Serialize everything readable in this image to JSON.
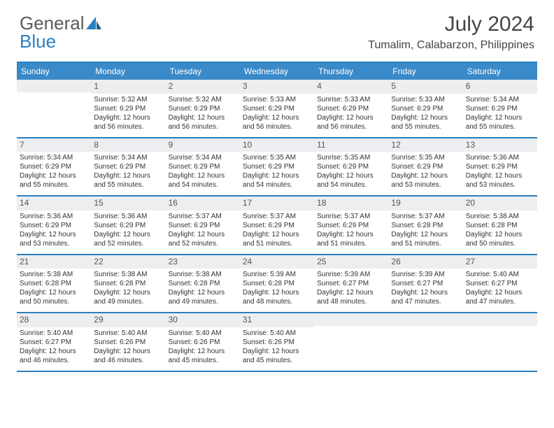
{
  "logo": {
    "text1": "General",
    "text2": "Blue"
  },
  "title": "July 2024",
  "location": "Tumalim, Calabarzon, Philippines",
  "day_names": [
    "Sunday",
    "Monday",
    "Tuesday",
    "Wednesday",
    "Thursday",
    "Friday",
    "Saturday"
  ],
  "colors": {
    "header_bg": "#3a8ac9",
    "border": "#2a7fbf",
    "daynum_bg": "#eceef0",
    "text": "#333333"
  },
  "first_weekday": 1,
  "days": [
    {
      "n": 1,
      "sunrise": "5:32 AM",
      "sunset": "6:29 PM",
      "daylight": "12 hours and 56 minutes."
    },
    {
      "n": 2,
      "sunrise": "5:32 AM",
      "sunset": "6:29 PM",
      "daylight": "12 hours and 56 minutes."
    },
    {
      "n": 3,
      "sunrise": "5:33 AM",
      "sunset": "6:29 PM",
      "daylight": "12 hours and 56 minutes."
    },
    {
      "n": 4,
      "sunrise": "5:33 AM",
      "sunset": "6:29 PM",
      "daylight": "12 hours and 56 minutes."
    },
    {
      "n": 5,
      "sunrise": "5:33 AM",
      "sunset": "6:29 PM",
      "daylight": "12 hours and 55 minutes."
    },
    {
      "n": 6,
      "sunrise": "5:34 AM",
      "sunset": "6:29 PM",
      "daylight": "12 hours and 55 minutes."
    },
    {
      "n": 7,
      "sunrise": "5:34 AM",
      "sunset": "6:29 PM",
      "daylight": "12 hours and 55 minutes."
    },
    {
      "n": 8,
      "sunrise": "5:34 AM",
      "sunset": "6:29 PM",
      "daylight": "12 hours and 55 minutes."
    },
    {
      "n": 9,
      "sunrise": "5:34 AM",
      "sunset": "6:29 PM",
      "daylight": "12 hours and 54 minutes."
    },
    {
      "n": 10,
      "sunrise": "5:35 AM",
      "sunset": "6:29 PM",
      "daylight": "12 hours and 54 minutes."
    },
    {
      "n": 11,
      "sunrise": "5:35 AM",
      "sunset": "6:29 PM",
      "daylight": "12 hours and 54 minutes."
    },
    {
      "n": 12,
      "sunrise": "5:35 AM",
      "sunset": "6:29 PM",
      "daylight": "12 hours and 53 minutes."
    },
    {
      "n": 13,
      "sunrise": "5:36 AM",
      "sunset": "6:29 PM",
      "daylight": "12 hours and 53 minutes."
    },
    {
      "n": 14,
      "sunrise": "5:36 AM",
      "sunset": "6:29 PM",
      "daylight": "12 hours and 53 minutes."
    },
    {
      "n": 15,
      "sunrise": "5:36 AM",
      "sunset": "6:29 PM",
      "daylight": "12 hours and 52 minutes."
    },
    {
      "n": 16,
      "sunrise": "5:37 AM",
      "sunset": "6:29 PM",
      "daylight": "12 hours and 52 minutes."
    },
    {
      "n": 17,
      "sunrise": "5:37 AM",
      "sunset": "6:29 PM",
      "daylight": "12 hours and 51 minutes."
    },
    {
      "n": 18,
      "sunrise": "5:37 AM",
      "sunset": "6:29 PM",
      "daylight": "12 hours and 51 minutes."
    },
    {
      "n": 19,
      "sunrise": "5:37 AM",
      "sunset": "6:28 PM",
      "daylight": "12 hours and 51 minutes."
    },
    {
      "n": 20,
      "sunrise": "5:38 AM",
      "sunset": "6:28 PM",
      "daylight": "12 hours and 50 minutes."
    },
    {
      "n": 21,
      "sunrise": "5:38 AM",
      "sunset": "6:28 PM",
      "daylight": "12 hours and 50 minutes."
    },
    {
      "n": 22,
      "sunrise": "5:38 AM",
      "sunset": "6:28 PM",
      "daylight": "12 hours and 49 minutes."
    },
    {
      "n": 23,
      "sunrise": "5:38 AM",
      "sunset": "6:28 PM",
      "daylight": "12 hours and 49 minutes."
    },
    {
      "n": 24,
      "sunrise": "5:39 AM",
      "sunset": "6:28 PM",
      "daylight": "12 hours and 48 minutes."
    },
    {
      "n": 25,
      "sunrise": "5:39 AM",
      "sunset": "6:27 PM",
      "daylight": "12 hours and 48 minutes."
    },
    {
      "n": 26,
      "sunrise": "5:39 AM",
      "sunset": "6:27 PM",
      "daylight": "12 hours and 47 minutes."
    },
    {
      "n": 27,
      "sunrise": "5:40 AM",
      "sunset": "6:27 PM",
      "daylight": "12 hours and 47 minutes."
    },
    {
      "n": 28,
      "sunrise": "5:40 AM",
      "sunset": "6:27 PM",
      "daylight": "12 hours and 46 minutes."
    },
    {
      "n": 29,
      "sunrise": "5:40 AM",
      "sunset": "6:26 PM",
      "daylight": "12 hours and 46 minutes."
    },
    {
      "n": 30,
      "sunrise": "5:40 AM",
      "sunset": "6:26 PM",
      "daylight": "12 hours and 45 minutes."
    },
    {
      "n": 31,
      "sunrise": "5:40 AM",
      "sunset": "6:26 PM",
      "daylight": "12 hours and 45 minutes."
    }
  ],
  "labels": {
    "sunrise": "Sunrise:",
    "sunset": "Sunset:",
    "daylight": "Daylight:"
  }
}
